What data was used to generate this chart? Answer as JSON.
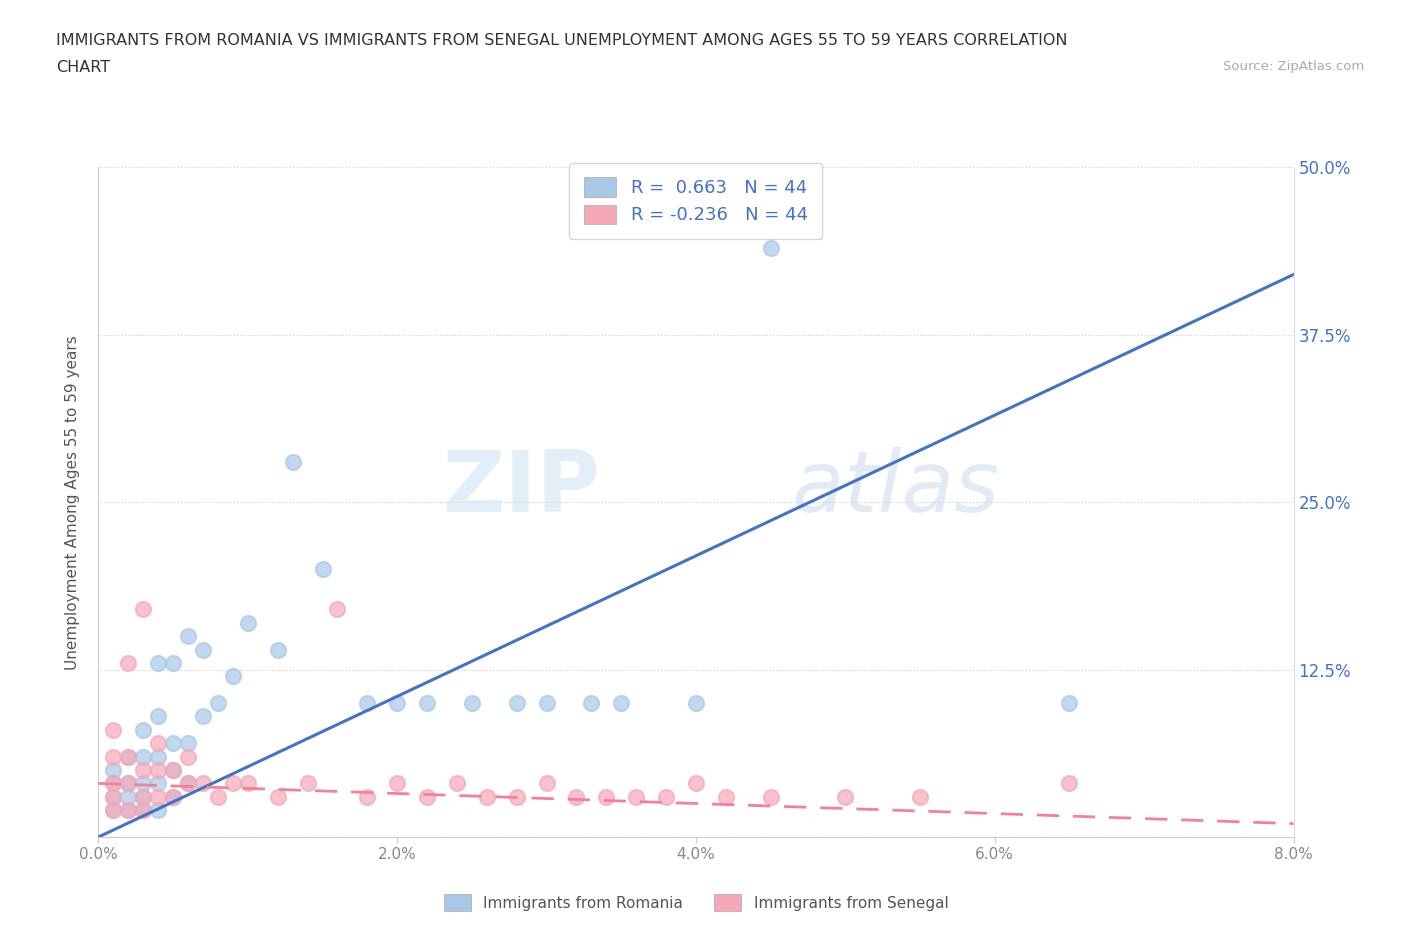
{
  "title_line1": "IMMIGRANTS FROM ROMANIA VS IMMIGRANTS FROM SENEGAL UNEMPLOYMENT AMONG AGES 55 TO 59 YEARS CORRELATION",
  "title_line2": "CHART",
  "source": "Source: ZipAtlas.com",
  "ylabel": "Unemployment Among Ages 55 to 59 years",
  "xlabel_romania": "Immigrants from Romania",
  "xlabel_senegal": "Immigrants from Senegal",
  "xlim": [
    0.0,
    0.08
  ],
  "ylim": [
    0.0,
    0.5
  ],
  "xticks": [
    0.0,
    0.02,
    0.04,
    0.06,
    0.08
  ],
  "yticks": [
    0.0,
    0.125,
    0.25,
    0.375,
    0.5
  ],
  "xticklabels": [
    "0.0%",
    "2.0%",
    "4.0%",
    "6.0%",
    "8.0%"
  ],
  "yticklabels_right": [
    "",
    "12.5%",
    "25.0%",
    "37.5%",
    "50.0%"
  ],
  "romania_color": "#a8c8e8",
  "senegal_color": "#f4a8b8",
  "romania_line_color": "#4472c4",
  "senegal_line_color": "#f48098",
  "romania_R": 0.663,
  "senegal_R": -0.236,
  "N": 44,
  "watermark_zip": "ZIP",
  "watermark_atlas": "atlas",
  "romania_scatter_x": [
    0.001,
    0.001,
    0.001,
    0.001,
    0.002,
    0.002,
    0.002,
    0.002,
    0.003,
    0.003,
    0.003,
    0.003,
    0.003,
    0.004,
    0.004,
    0.004,
    0.004,
    0.004,
    0.005,
    0.005,
    0.005,
    0.005,
    0.006,
    0.006,
    0.006,
    0.007,
    0.007,
    0.008,
    0.009,
    0.01,
    0.012,
    0.013,
    0.015,
    0.018,
    0.02,
    0.022,
    0.025,
    0.028,
    0.03,
    0.033,
    0.035,
    0.04,
    0.045,
    0.065
  ],
  "romania_scatter_y": [
    0.02,
    0.03,
    0.04,
    0.05,
    0.02,
    0.03,
    0.04,
    0.06,
    0.02,
    0.03,
    0.04,
    0.06,
    0.08,
    0.02,
    0.04,
    0.06,
    0.09,
    0.13,
    0.03,
    0.05,
    0.07,
    0.13,
    0.04,
    0.07,
    0.15,
    0.09,
    0.14,
    0.1,
    0.12,
    0.16,
    0.14,
    0.28,
    0.2,
    0.1,
    0.1,
    0.1,
    0.1,
    0.1,
    0.1,
    0.1,
    0.1,
    0.1,
    0.44,
    0.1
  ],
  "senegal_scatter_x": [
    0.001,
    0.001,
    0.001,
    0.001,
    0.001,
    0.002,
    0.002,
    0.002,
    0.002,
    0.003,
    0.003,
    0.003,
    0.003,
    0.004,
    0.004,
    0.004,
    0.005,
    0.005,
    0.006,
    0.006,
    0.007,
    0.008,
    0.009,
    0.01,
    0.012,
    0.014,
    0.016,
    0.018,
    0.02,
    0.022,
    0.024,
    0.026,
    0.028,
    0.03,
    0.032,
    0.034,
    0.036,
    0.038,
    0.04,
    0.042,
    0.045,
    0.05,
    0.055,
    0.065
  ],
  "senegal_scatter_y": [
    0.02,
    0.03,
    0.04,
    0.06,
    0.08,
    0.02,
    0.04,
    0.06,
    0.13,
    0.02,
    0.03,
    0.05,
    0.17,
    0.03,
    0.05,
    0.07,
    0.03,
    0.05,
    0.04,
    0.06,
    0.04,
    0.03,
    0.04,
    0.04,
    0.03,
    0.04,
    0.17,
    0.03,
    0.04,
    0.03,
    0.04,
    0.03,
    0.03,
    0.04,
    0.03,
    0.03,
    0.03,
    0.03,
    0.04,
    0.03,
    0.03,
    0.03,
    0.03,
    0.04
  ],
  "romania_trend_x0": 0.0,
  "romania_trend_y0": 0.0,
  "romania_trend_x1": 0.08,
  "romania_trend_y1": 0.42,
  "senegal_trend_x0": 0.0,
  "senegal_trend_y0": 0.04,
  "senegal_trend_x1": 0.08,
  "senegal_trend_y1": 0.01
}
